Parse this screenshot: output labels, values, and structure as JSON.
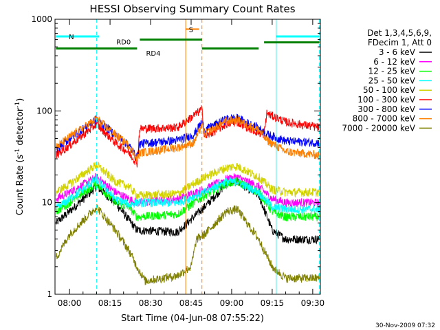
{
  "chart_data": {
    "type": "line",
    "title": "HESSI Observing Summary Count Rates",
    "xlabel": "Start Time (04-Jun-08 07:55:22)",
    "ylabel": "Count Rate (s",
    "ylabel_sup": "-1",
    "ylabel_mid": " detector",
    "ylabel_sup2": "-1",
    "ylabel_end": ")",
    "y_scale": "log",
    "ylim": [
      1,
      1000
    ],
    "xlim_minutes": [
      -5.37,
      92.83
    ],
    "x_ticks": [
      {
        "m": 0,
        "label": "08:00"
      },
      {
        "m": 15,
        "label": "08:15"
      },
      {
        "m": 30,
        "label": "08:30"
      },
      {
        "m": 45,
        "label": "08:45"
      },
      {
        "m": 60,
        "label": "09:00"
      },
      {
        "m": 75,
        "label": "09:15"
      },
      {
        "m": 90,
        "label": "09:30"
      }
    ],
    "y_ticks": [
      {
        "v": 1,
        "label": "1"
      },
      {
        "v": 10,
        "label": "10"
      },
      {
        "v": 100,
        "label": "100"
      },
      {
        "v": 1000,
        "label": "1000"
      }
    ],
    "legend_header": [
      "Det 1,3,4,5,6,9,",
      "FDecim 1, Att 0"
    ],
    "legend_placement": "right",
    "series": [
      {
        "name": "3 - 6 keV",
        "color": "#000000"
      },
      {
        "name": "6 - 12 keV",
        "color": "#ff00ff"
      },
      {
        "name": "12 - 25 keV",
        "color": "#00ff00"
      },
      {
        "name": "25 - 50 keV",
        "color": "#00ffff"
      },
      {
        "name": "50 - 100 keV",
        "color": "#d2d200"
      },
      {
        "name": "100 - 300 keV",
        "color": "#ff0000"
      },
      {
        "name": "300 - 800 keV",
        "color": "#0000ff"
      },
      {
        "name": "800 - 7000 keV",
        "color": "#ff8000"
      },
      {
        "name": "7000 - 20000 keV",
        "color": "#808000"
      }
    ],
    "curves": [
      {
        "series": "3 - 6 keV",
        "points": [
          [
            -5,
            6
          ],
          [
            0,
            8
          ],
          [
            10,
            15
          ],
          [
            17,
            10
          ],
          [
            25,
            5
          ],
          [
            40,
            4.8
          ],
          [
            50,
            9
          ],
          [
            58,
            16
          ],
          [
            62,
            17
          ],
          [
            70,
            12
          ],
          [
            75,
            5
          ],
          [
            80,
            4
          ],
          [
            92.5,
            4
          ]
        ]
      },
      {
        "series": "6 - 12 keV",
        "points": [
          [
            -5,
            11
          ],
          [
            0,
            13
          ],
          [
            10,
            19
          ],
          [
            17,
            13
          ],
          [
            22,
            11
          ],
          [
            25,
            10
          ],
          [
            40,
            11
          ],
          [
            50,
            14
          ],
          [
            58,
            18
          ],
          [
            62,
            19
          ],
          [
            70,
            15
          ],
          [
            75,
            11
          ],
          [
            80,
            10
          ],
          [
            92.5,
            10
          ]
        ]
      },
      {
        "series": "12 - 25 keV",
        "points": [
          [
            -5,
            8
          ],
          [
            0,
            10
          ],
          [
            10,
            16
          ],
          [
            17,
            10
          ],
          [
            22,
            9
          ],
          [
            25,
            7
          ],
          [
            40,
            7.5
          ],
          [
            50,
            12
          ],
          [
            58,
            16
          ],
          [
            62,
            17
          ],
          [
            70,
            13
          ],
          [
            75,
            8
          ],
          [
            80,
            7
          ],
          [
            92.5,
            7
          ]
        ]
      },
      {
        "series": "25 - 50 keV",
        "points": [
          [
            -5,
            8.5
          ],
          [
            0,
            11
          ],
          [
            10,
            18
          ],
          [
            17,
            11
          ],
          [
            22,
            9.5
          ],
          [
            25,
            10
          ],
          [
            40,
            10
          ],
          [
            50,
            13
          ],
          [
            58,
            17
          ],
          [
            62,
            17
          ],
          [
            70,
            13
          ],
          [
            75,
            9
          ],
          [
            80,
            8.5
          ],
          [
            92.5,
            8.5
          ]
        ]
      },
      {
        "series": "50 - 100 keV",
        "points": [
          [
            -5,
            13
          ],
          [
            0,
            16
          ],
          [
            10,
            26
          ],
          [
            17,
            17
          ],
          [
            22,
            15
          ],
          [
            25,
            12
          ],
          [
            40,
            12.5
          ],
          [
            50,
            19
          ],
          [
            58,
            24
          ],
          [
            62,
            25
          ],
          [
            70,
            19
          ],
          [
            75,
            14
          ],
          [
            80,
            13
          ],
          [
            92.5,
            13
          ]
        ]
      },
      {
        "series": "100 - 300 keV",
        "points": [
          [
            -5,
            33
          ],
          [
            0,
            42
          ],
          [
            10,
            72
          ],
          [
            17,
            45
          ],
          [
            22,
            35
          ],
          [
            25,
            27
          ],
          [
            26,
            64
          ],
          [
            40,
            66
          ],
          [
            47,
            94
          ],
          [
            49,
            105
          ],
          [
            50,
            52
          ],
          [
            58,
            72
          ],
          [
            62,
            76
          ],
          [
            70,
            58
          ],
          [
            72,
            56
          ],
          [
            73,
            94
          ],
          [
            80,
            76
          ],
          [
            92.5,
            66
          ]
        ]
      },
      {
        "series": "300 - 800 keV",
        "points": [
          [
            -5,
            38
          ],
          [
            0,
            50
          ],
          [
            10,
            82
          ],
          [
            17,
            55
          ],
          [
            22,
            42
          ],
          [
            25,
            31
          ],
          [
            26,
            44
          ],
          [
            40,
            48
          ],
          [
            46,
            55
          ],
          [
            49,
            76
          ],
          [
            50,
            62
          ],
          [
            58,
            82
          ],
          [
            62,
            84
          ],
          [
            70,
            65
          ],
          [
            73,
            56
          ],
          [
            80,
            47
          ],
          [
            92.5,
            45
          ]
        ]
      },
      {
        "series": "800 - 7000 keV",
        "points": [
          [
            -5,
            40
          ],
          [
            0,
            52
          ],
          [
            10,
            82
          ],
          [
            17,
            55
          ],
          [
            22,
            42
          ],
          [
            25,
            30
          ],
          [
            26,
            35
          ],
          [
            40,
            40
          ],
          [
            46,
            45
          ],
          [
            49,
            70
          ],
          [
            50,
            56
          ],
          [
            58,
            78
          ],
          [
            62,
            80
          ],
          [
            70,
            62
          ],
          [
            73,
            48
          ],
          [
            80,
            36
          ],
          [
            92.5,
            33
          ]
        ]
      },
      {
        "series": "800 - 7000 keV",
        "points": [
          [
            43,
            780
          ],
          [
            48,
            780
          ]
        ]
      },
      {
        "series": "7000 - 20000 keV",
        "points": [
          [
            -5,
            2.5
          ],
          [
            0,
            4.5
          ],
          [
            10,
            9
          ],
          [
            17,
            5
          ],
          [
            22,
            3
          ],
          [
            25,
            2
          ],
          [
            28,
            1.4
          ],
          [
            40,
            1.6
          ],
          [
            45,
            2
          ],
          [
            47,
            4
          ],
          [
            50,
            4.5
          ],
          [
            58,
            8
          ],
          [
            62,
            8.5
          ],
          [
            70,
            4
          ],
          [
            75,
            2
          ],
          [
            80,
            1.5
          ],
          [
            92.5,
            1.5
          ]
        ]
      }
    ],
    "regions": [
      {
        "label": "N",
        "color": "#00ffff",
        "y": 650,
        "segments": [
          [
            -5,
            11
          ]
        ],
        "bounds": [
          {
            "m": 10,
            "style": "dashed"
          }
        ]
      },
      {
        "label": "N",
        "color": "#00ffff",
        "y": 650,
        "segments": [
          [
            76.5,
            92.5
          ]
        ],
        "bounds": [
          {
            "m": 76.5,
            "style": "solid"
          },
          {
            "m": 92.5,
            "style": "dashed"
          }
        ]
      },
      {
        "label": "",
        "color": "#00ffff",
        "y": null,
        "segments": [],
        "bounds": [
          {
            "m": -5.37,
            "style": "solid"
          }
        ]
      },
      {
        "label": "S",
        "color": "#ff8000",
        "y": null,
        "segments": [],
        "bounds": [
          {
            "m": 43,
            "style": "solid"
          },
          {
            "m": 49,
            "style": "dashed"
          }
        ]
      },
      {
        "label": "RD0",
        "color": "#008000",
        "y": 600,
        "segments": [
          [
            26,
            49
          ]
        ],
        "bounds": []
      },
      {
        "label": "RD4",
        "color": "#008000",
        "y": 480,
        "segments": [
          [
            -5,
            25
          ],
          [
            49,
            70
          ]
        ],
        "bounds": []
      },
      {
        "label": "",
        "color": "#008000",
        "y": 560,
        "segments": [
          [
            72,
            92.5
          ]
        ],
        "bounds": []
      }
    ],
    "region_label_positions": {
      "N": [
        0.7,
        650
      ],
      "S": [
        45,
        780
      ],
      "RD0": [
        20,
        570
      ],
      "RD4": [
        31,
        430
      ]
    },
    "grid": false
  },
  "footer_timestamp": "30-Nov-2009 07:32"
}
